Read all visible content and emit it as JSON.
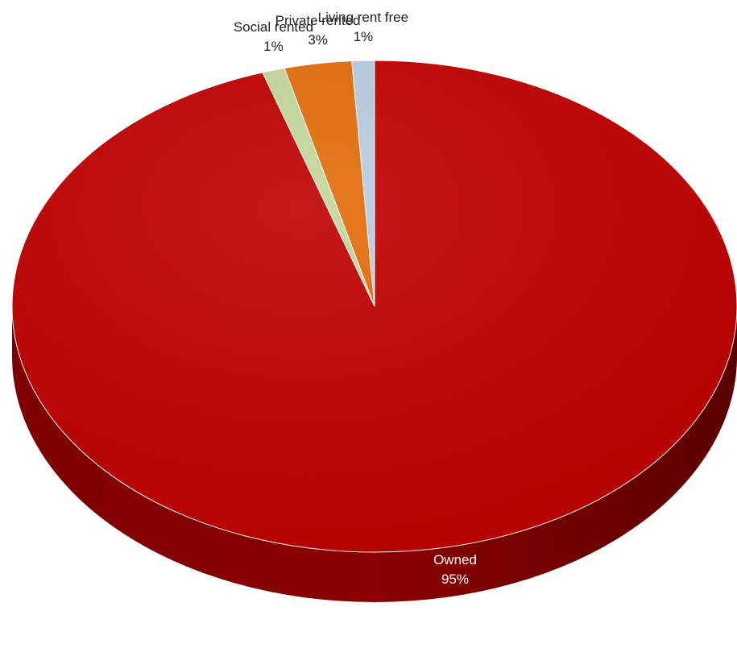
{
  "chart_data": {
    "type": "pie",
    "title": "",
    "categories": [
      "Owned",
      "Social rented",
      "Private rented",
      "Living rent free"
    ],
    "values": [
      95,
      1,
      3,
      1
    ],
    "percent_labels": [
      "95%",
      "1%",
      "3%",
      "1%"
    ],
    "colors": [
      "#c00000",
      "#c4d79b",
      "#e46c0a",
      "#b8cce4"
    ],
    "side_colors": [
      "#8b0000",
      "#9bb06e",
      "#a84f06",
      "#8fa6c2"
    ],
    "style": "3d-tilted",
    "legend": "none"
  }
}
